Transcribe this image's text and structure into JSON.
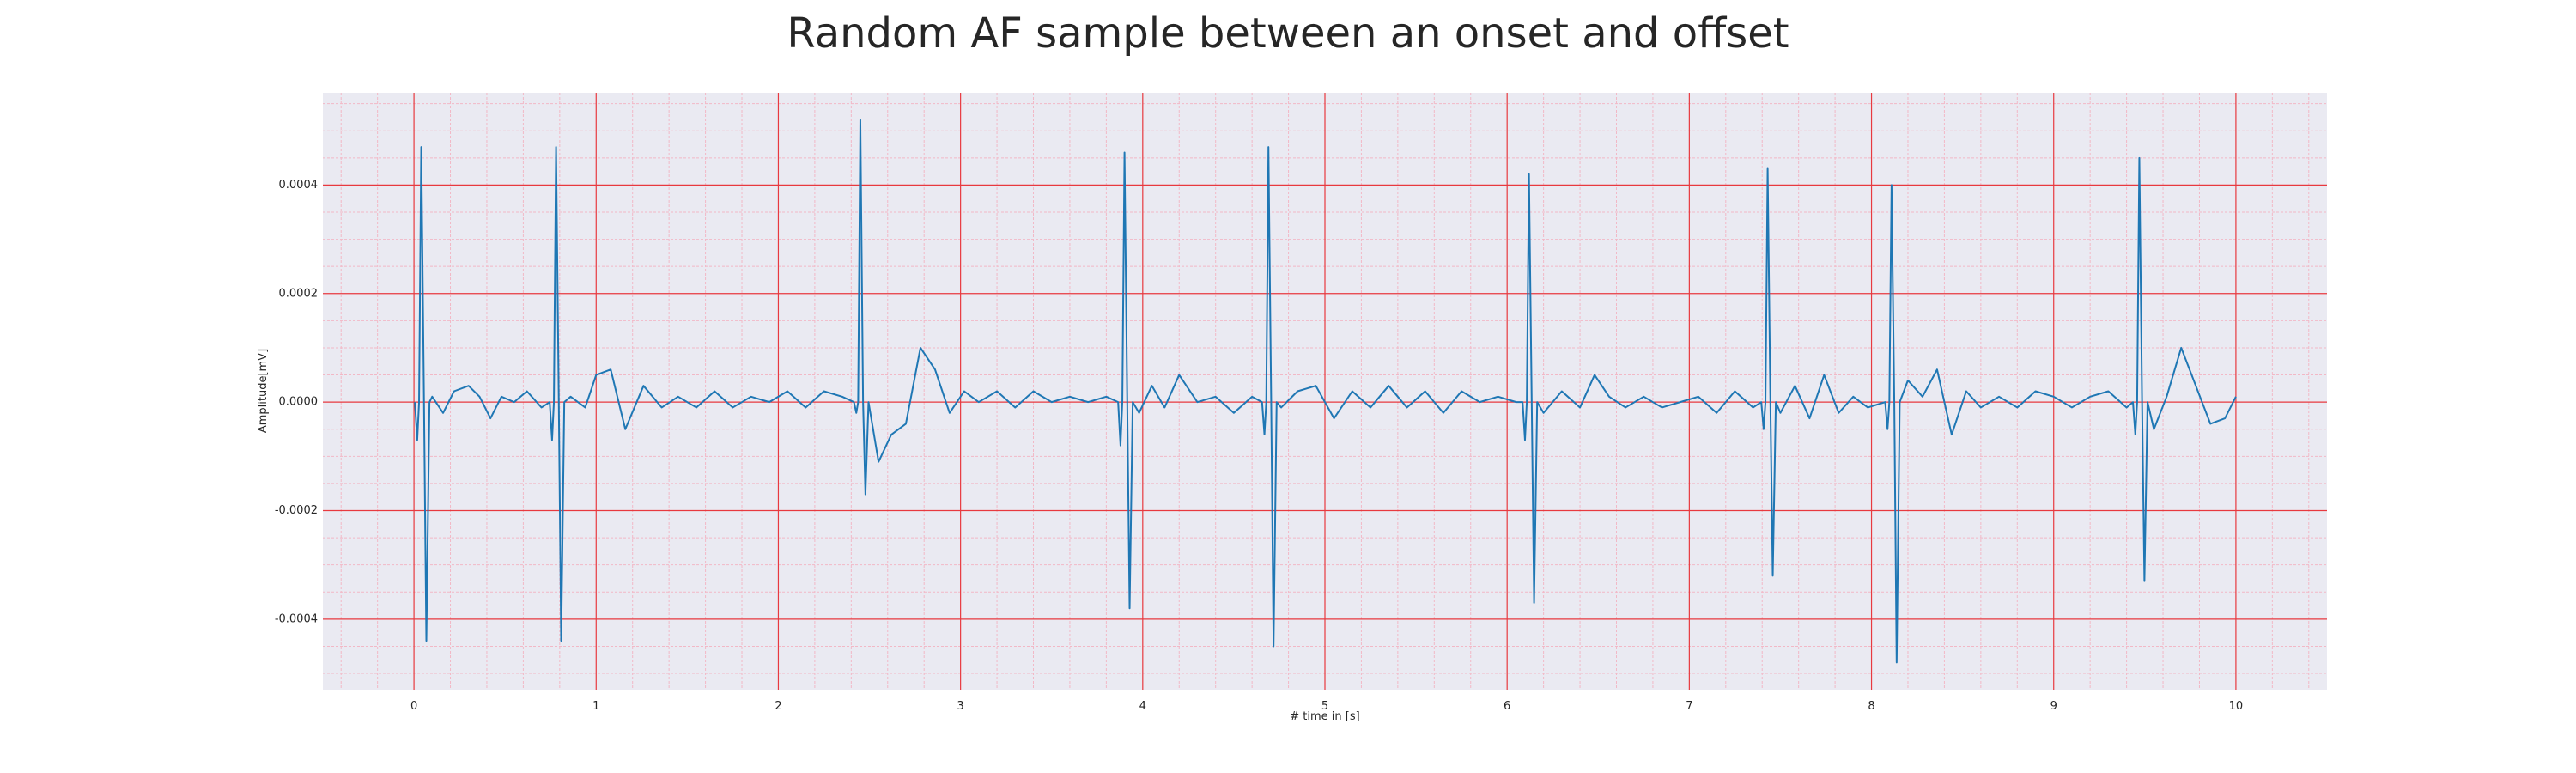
{
  "chart_data": {
    "type": "line",
    "title": "Random AF sample between an onset and offset",
    "xlabel": "# time in [s]",
    "ylabel": "Amplitude[mV]",
    "xlim": [
      -0.5,
      10.5
    ],
    "ylim": [
      -0.00053,
      0.00057
    ],
    "xticks": [
      0,
      1,
      2,
      3,
      4,
      5,
      6,
      7,
      8,
      9,
      10
    ],
    "xtick_labels": [
      "0",
      "1",
      "2",
      "3",
      "4",
      "5",
      "6",
      "7",
      "8",
      "9",
      "10"
    ],
    "yticks": [
      -0.0004,
      -0.0002,
      0,
      0.0002,
      0.0004
    ],
    "ytick_labels": [
      "-0.0004",
      "-0.0002",
      "0.0000",
      "0.0002",
      "0.0004"
    ],
    "grid": true,
    "minor_grid": true,
    "background_color": "#eaeaf2",
    "major_grid_color": "#e8393f",
    "minor_grid_color": "#f2b8c6",
    "line_color": "#1f77b4",
    "beats": [
      {
        "t": 0.04,
        "pre": -7e-05,
        "peak": 0.00047,
        "trough": -0.00044
      },
      {
        "t": 0.78,
        "pre": -7e-05,
        "peak": 0.00047,
        "trough": -0.00044
      },
      {
        "t": 2.45,
        "pre": -2e-05,
        "peak": 0.00052,
        "trough": -0.00017
      },
      {
        "t": 3.9,
        "pre": -8e-05,
        "peak": 0.00046,
        "trough": -0.00038
      },
      {
        "t": 4.69,
        "pre": -6e-05,
        "peak": 0.00047,
        "trough": -0.00045
      },
      {
        "t": 6.12,
        "pre": -7e-05,
        "peak": 0.00042,
        "trough": -0.00037
      },
      {
        "t": 7.43,
        "pre": -5e-05,
        "peak": 0.00043,
        "trough": -0.00032
      },
      {
        "t": 8.11,
        "pre": -5e-05,
        "peak": 0.0004,
        "trough": -0.00048
      },
      {
        "t": 9.47,
        "pre": -6e-05,
        "peak": 0.00045,
        "trough": -0.00033
      }
    ],
    "baseline": {
      "x": [
        0.0,
        0.1,
        0.16,
        0.22,
        0.3,
        0.36,
        0.42,
        0.48,
        0.55,
        0.62,
        0.7,
        0.86,
        0.94,
        1.0,
        1.08,
        1.16,
        1.26,
        1.36,
        1.45,
        1.55,
        1.65,
        1.75,
        1.85,
        1.95,
        2.05,
        2.15,
        2.25,
        2.35,
        2.5,
        2.55,
        2.62,
        2.7,
        2.78,
        2.86,
        2.94,
        3.02,
        3.1,
        3.2,
        3.3,
        3.4,
        3.5,
        3.6,
        3.7,
        3.8,
        3.86,
        3.98,
        4.05,
        4.12,
        4.2,
        4.3,
        4.4,
        4.5,
        4.6,
        4.64,
        4.76,
        4.85,
        4.95,
        5.05,
        5.15,
        5.25,
        5.35,
        5.45,
        5.55,
        5.65,
        5.75,
        5.85,
        5.95,
        6.05,
        6.08,
        6.2,
        6.3,
        6.4,
        6.48,
        6.56,
        6.65,
        6.75,
        6.85,
        6.95,
        7.05,
        7.15,
        7.25,
        7.35,
        7.4,
        7.5,
        7.58,
        7.66,
        7.74,
        7.82,
        7.9,
        7.98,
        8.06,
        8.2,
        8.28,
        8.36,
        8.44,
        8.52,
        8.6,
        8.7,
        8.8,
        8.9,
        9.0,
        9.1,
        9.2,
        9.3,
        9.4,
        9.44,
        9.55,
        9.62,
        9.7,
        9.78,
        9.86,
        9.94,
        10.0
      ],
      "y": [
        5e-06,
        1e-05,
        -2e-05,
        2e-05,
        3e-05,
        1e-05,
        -3e-05,
        1e-05,
        0.0,
        2e-05,
        -1e-05,
        1e-05,
        -1e-05,
        5e-05,
        6e-05,
        -5e-05,
        3e-05,
        -1e-05,
        1e-05,
        -1e-05,
        2e-05,
        -1e-05,
        1e-05,
        0.0,
        2e-05,
        -1e-05,
        2e-05,
        1e-05,
        -0.00013,
        -0.00011,
        -6e-05,
        -4e-05,
        0.0001,
        6e-05,
        -2e-05,
        2e-05,
        0.0,
        2e-05,
        -1e-05,
        2e-05,
        0.0,
        1e-05,
        0.0,
        1e-05,
        0.0,
        -2e-05,
        3e-05,
        -1e-05,
        5e-05,
        0.0,
        1e-05,
        -2e-05,
        1e-05,
        0.0,
        -1e-05,
        2e-05,
        3e-05,
        -3e-05,
        2e-05,
        -1e-05,
        3e-05,
        -1e-05,
        2e-05,
        -2e-05,
        2e-05,
        0.0,
        1e-05,
        0.0,
        0.0,
        -2e-05,
        2e-05,
        -1e-05,
        5e-05,
        1e-05,
        -1e-05,
        1e-05,
        -1e-05,
        0.0,
        1e-05,
        -2e-05,
        2e-05,
        -1e-05,
        0.0,
        -2e-05,
        3e-05,
        -3e-05,
        5e-05,
        -2e-05,
        1e-05,
        -1e-05,
        1e-05,
        4e-05,
        1e-05,
        6e-05,
        -6e-05,
        2e-05,
        -1e-05,
        1e-05,
        -1e-05,
        2e-05,
        1e-05,
        -1e-05,
        1e-05,
        2e-05,
        -1e-05,
        1e-05,
        -5e-05,
        1e-05,
        0.0001,
        3e-05,
        -4e-05,
        -3e-05,
        1e-05
      ]
    }
  }
}
